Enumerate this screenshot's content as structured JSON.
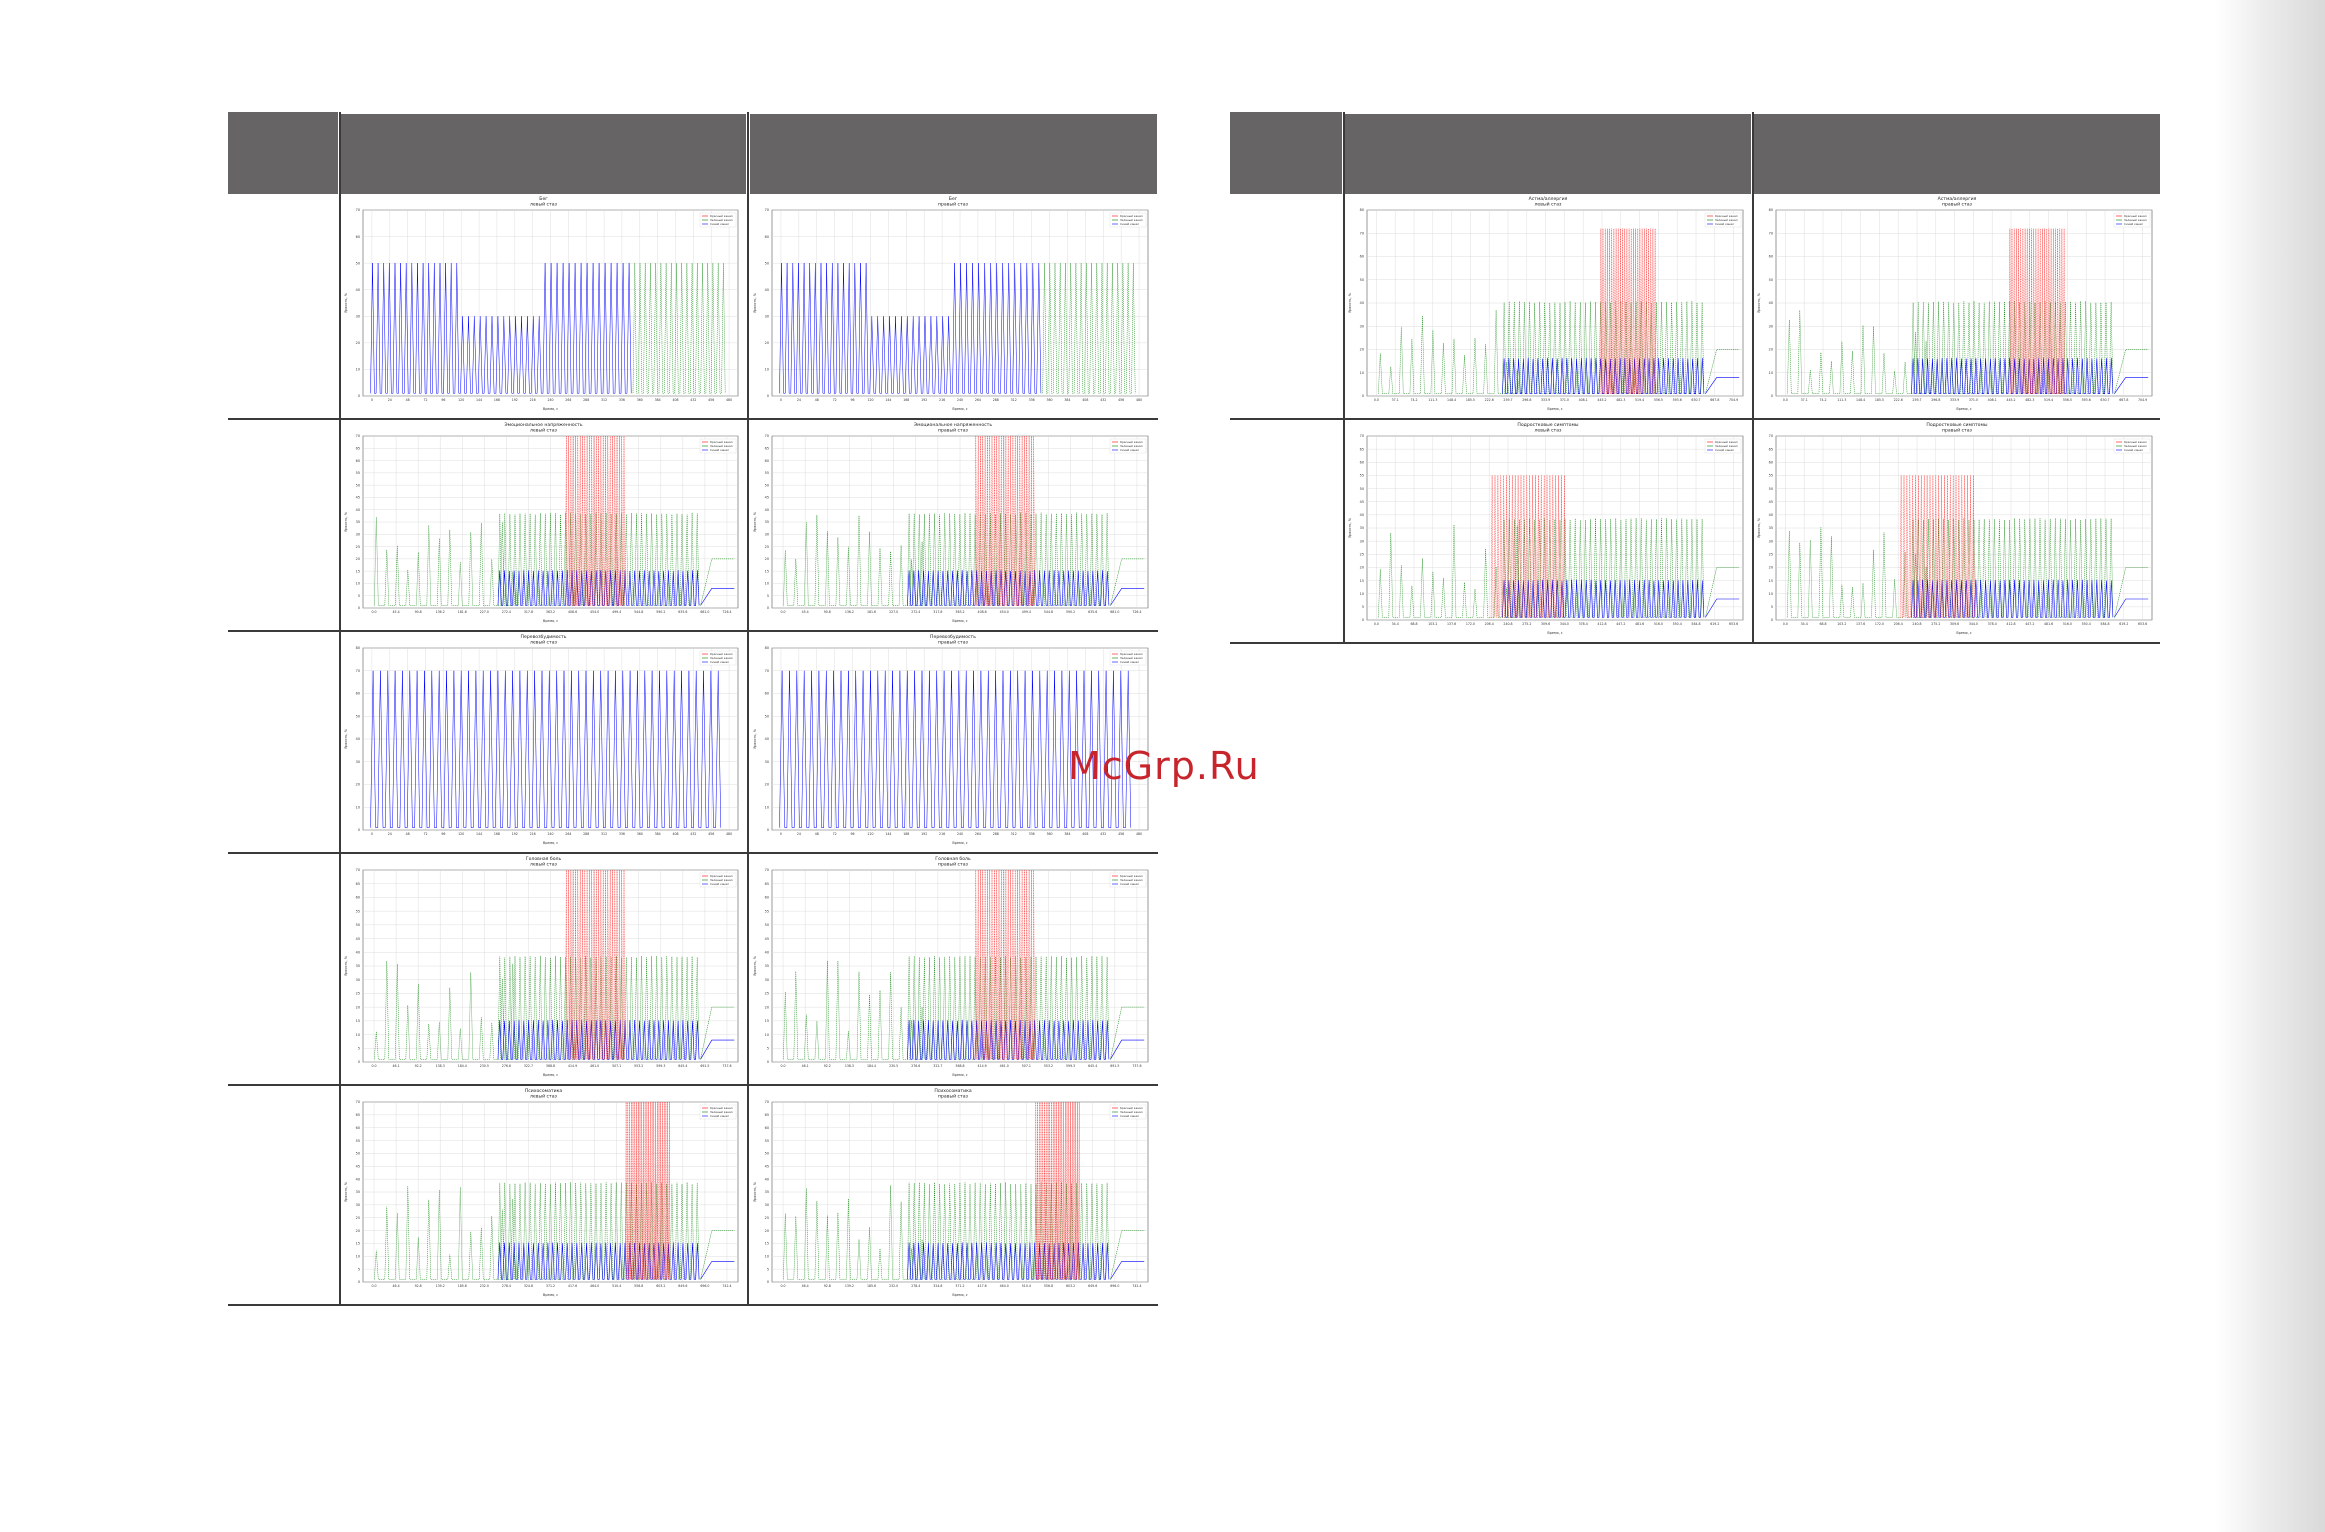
{
  "page": {
    "watermark": "McGrp.Ru"
  },
  "table_left": {
    "header_cells": [
      "",
      "",
      ""
    ],
    "charts": [
      {
        "id": "L1",
        "title": "Бег",
        "subtitle": "левый стаз",
        "style": "steps",
        "ylim": [
          0,
          70
        ],
        "ytick_step": 10,
        "xticks": [
          "0",
          "24",
          "48",
          "72",
          "96",
          "120",
          "144",
          "168",
          "192",
          "216",
          "240",
          "264",
          "288",
          "312",
          "336",
          "360",
          "384",
          "408",
          "432",
          "456",
          "480"
        ],
        "legend": [
          "Красный канал",
          "Зеленый канал",
          "Синий канал"
        ]
      },
      {
        "id": "R1",
        "title": "Бег",
        "subtitle": "правый стаз",
        "style": "steps",
        "ylim": [
          0,
          70
        ],
        "ytick_step": 10,
        "xticks": [
          "0",
          "24",
          "48",
          "72",
          "96",
          "120",
          "144",
          "168",
          "192",
          "216",
          "240",
          "264",
          "288",
          "312",
          "336",
          "360",
          "384",
          "408",
          "432",
          "456",
          "480"
        ],
        "legend": [
          "Красный канал",
          "Зеленый канал",
          "Синий канал"
        ]
      },
      {
        "id": "L2",
        "title": "Эмоциональное напряженность",
        "subtitle": "левый стаз",
        "style": "mixed",
        "ylim": [
          0,
          70
        ],
        "ytick_step": 5,
        "xticks": [
          "0.0",
          "45.4",
          "90.8",
          "136.2",
          "181.6",
          "227.0",
          "272.4",
          "317.8",
          "363.2",
          "408.6",
          "454.0",
          "499.4",
          "544.8",
          "590.2",
          "635.6",
          "681.0",
          "726.4"
        ],
        "legend": [
          "Красный канал",
          "Зеленый канал",
          "Синий канал"
        ]
      },
      {
        "id": "R2",
        "title": "Эмоциональное напряженность",
        "subtitle": "правый стаз",
        "style": "mixed",
        "ylim": [
          0,
          70
        ],
        "ytick_step": 5,
        "xticks": [
          "0.0",
          "45.4",
          "90.8",
          "136.2",
          "181.6",
          "227.0",
          "272.4",
          "317.8",
          "363.2",
          "408.6",
          "454.0",
          "499.4",
          "544.8",
          "590.2",
          "635.6",
          "681.0",
          "726.4"
        ],
        "legend": [
          "Красный канал",
          "Зеленый канал",
          "Синий канал"
        ]
      },
      {
        "id": "L3",
        "title": "Перевозбудимость",
        "subtitle": "левый стаз",
        "style": "uniform",
        "ylim": [
          0,
          80
        ],
        "ytick_step": 10,
        "xticks": [
          "0",
          "24",
          "48",
          "72",
          "96",
          "120",
          "144",
          "168",
          "192",
          "216",
          "240",
          "264",
          "288",
          "312",
          "336",
          "360",
          "384",
          "408",
          "432",
          "456",
          "480"
        ],
        "legend": [
          "Красный канал",
          "Зеленый канал",
          "Синий канал"
        ]
      },
      {
        "id": "R3",
        "title": "Перевозбудимость",
        "subtitle": "правый стаз",
        "style": "uniform",
        "ylim": [
          0,
          80
        ],
        "ytick_step": 10,
        "xticks": [
          "0",
          "24",
          "48",
          "72",
          "96",
          "120",
          "144",
          "168",
          "192",
          "216",
          "240",
          "264",
          "288",
          "312",
          "336",
          "360",
          "384",
          "408",
          "432",
          "456",
          "480"
        ],
        "legend": [
          "Красный канал",
          "Зеленый канал",
          "Синий канал"
        ]
      },
      {
        "id": "L4",
        "title": "Головная боль",
        "subtitle": "левый стаз",
        "style": "mixed",
        "ylim": [
          0,
          70
        ],
        "ytick_step": 5,
        "xticks": [
          "0.0",
          "46.1",
          "92.2",
          "138.3",
          "184.4",
          "230.5",
          "276.6",
          "322.7",
          "368.8",
          "414.9",
          "461.0",
          "507.1",
          "553.2",
          "599.3",
          "645.4",
          "691.5",
          "737.6"
        ],
        "legend": [
          "Красный канал",
          "Зеленый канал",
          "Синий канал"
        ]
      },
      {
        "id": "R4",
        "title": "Головная боль",
        "subtitle": "правый стаз",
        "style": "mixed",
        "ylim": [
          0,
          70
        ],
        "ytick_step": 5,
        "xticks": [
          "0.0",
          "46.1",
          "92.2",
          "138.3",
          "184.4",
          "230.5",
          "276.6",
          "322.7",
          "368.8",
          "414.9",
          "461.0",
          "507.1",
          "553.2",
          "599.3",
          "645.4",
          "691.5",
          "737.6"
        ],
        "legend": [
          "Красный канал",
          "Зеленый канал",
          "Синий канал"
        ]
      },
      {
        "id": "L5",
        "title": "Психосоматика",
        "subtitle": "левый стаз",
        "style": "mixed_late",
        "ylim": [
          0,
          70
        ],
        "ytick_step": 5,
        "xticks": [
          "0.0",
          "46.4",
          "92.8",
          "139.2",
          "185.6",
          "232.0",
          "278.4",
          "324.8",
          "371.2",
          "417.6",
          "464.0",
          "510.4",
          "556.8",
          "603.2",
          "649.6",
          "696.0",
          "742.4"
        ],
        "legend": [
          "Красный канал",
          "Зеленый канал",
          "Синий канал"
        ]
      },
      {
        "id": "R5",
        "title": "Психосоматика",
        "subtitle": "правый стаз",
        "style": "mixed_late",
        "ylim": [
          0,
          70
        ],
        "ytick_step": 5,
        "xticks": [
          "0.0",
          "46.4",
          "92.8",
          "139.2",
          "185.6",
          "232.0",
          "278.4",
          "324.8",
          "371.2",
          "417.6",
          "464.0",
          "510.4",
          "556.8",
          "603.2",
          "649.6",
          "696.0",
          "742.4"
        ],
        "legend": [
          "Красный канал",
          "Зеленый канал",
          "Синий канал"
        ]
      }
    ]
  },
  "table_right": {
    "header_cells": [
      "",
      "",
      ""
    ],
    "charts": [
      {
        "id": "L6",
        "title": "Астма/аллергия",
        "subtitle": "левый стаз",
        "style": "asthma",
        "ylim": [
          0,
          80
        ],
        "ytick_step": 10,
        "xticks": [
          "0.0",
          "37.1",
          "74.2",
          "111.3",
          "148.4",
          "185.5",
          "222.6",
          "259.7",
          "296.8",
          "333.9",
          "371.0",
          "408.1",
          "445.2",
          "482.3",
          "519.4",
          "556.5",
          "593.6",
          "630.7",
          "667.8",
          "704.9"
        ],
        "legend": [
          "Красный канал",
          "Зеленый канал",
          "Синий канал"
        ]
      },
      {
        "id": "R6",
        "title": "Астма/аллергия",
        "subtitle": "правый стаз",
        "style": "asthma",
        "ylim": [
          0,
          80
        ],
        "ytick_step": 10,
        "xticks": [
          "0.0",
          "37.1",
          "74.2",
          "111.3",
          "148.4",
          "185.5",
          "222.6",
          "259.7",
          "296.8",
          "333.9",
          "371.0",
          "408.1",
          "445.2",
          "482.3",
          "519.4",
          "556.5",
          "593.6",
          "630.7",
          "667.8",
          "704.9"
        ],
        "legend": [
          "Красный канал",
          "Зеленый канал",
          "Синий канал"
        ]
      },
      {
        "id": "L7",
        "title": "Подростковые симптомы",
        "subtitle": "левый стаз",
        "style": "teen",
        "ylim": [
          0,
          70
        ],
        "ytick_step": 5,
        "xticks": [
          "0.0",
          "34.4",
          "68.8",
          "103.2",
          "137.6",
          "172.0",
          "206.4",
          "240.8",
          "275.2",
          "309.6",
          "344.0",
          "378.4",
          "412.8",
          "447.2",
          "481.6",
          "516.0",
          "550.4",
          "584.8",
          "619.2",
          "653.6"
        ],
        "legend": [
          "Красный канал",
          "Зеленый канал",
          "Синий канал"
        ]
      },
      {
        "id": "R7",
        "title": "Подростковые симптомы",
        "subtitle": "правый стаз",
        "style": "teen",
        "ylim": [
          0,
          70
        ],
        "ytick_step": 5,
        "xticks": [
          "0.0",
          "34.4",
          "68.8",
          "103.2",
          "137.6",
          "172.0",
          "206.4",
          "240.8",
          "275.2",
          "309.6",
          "344.0",
          "378.4",
          "412.8",
          "447.2",
          "481.6",
          "516.0",
          "550.4",
          "584.8",
          "619.2",
          "653.6"
        ],
        "legend": [
          "Красный канал",
          "Зеленый канал",
          "Синий канал"
        ]
      }
    ]
  },
  "axis": {
    "xlabel": "Время, с",
    "ylabel": "Яркость, %"
  },
  "colors": {
    "header": "#666465",
    "red": "#ff0000",
    "green": "#008000",
    "blue": "#0000ff",
    "watermark": "#c8242c"
  }
}
